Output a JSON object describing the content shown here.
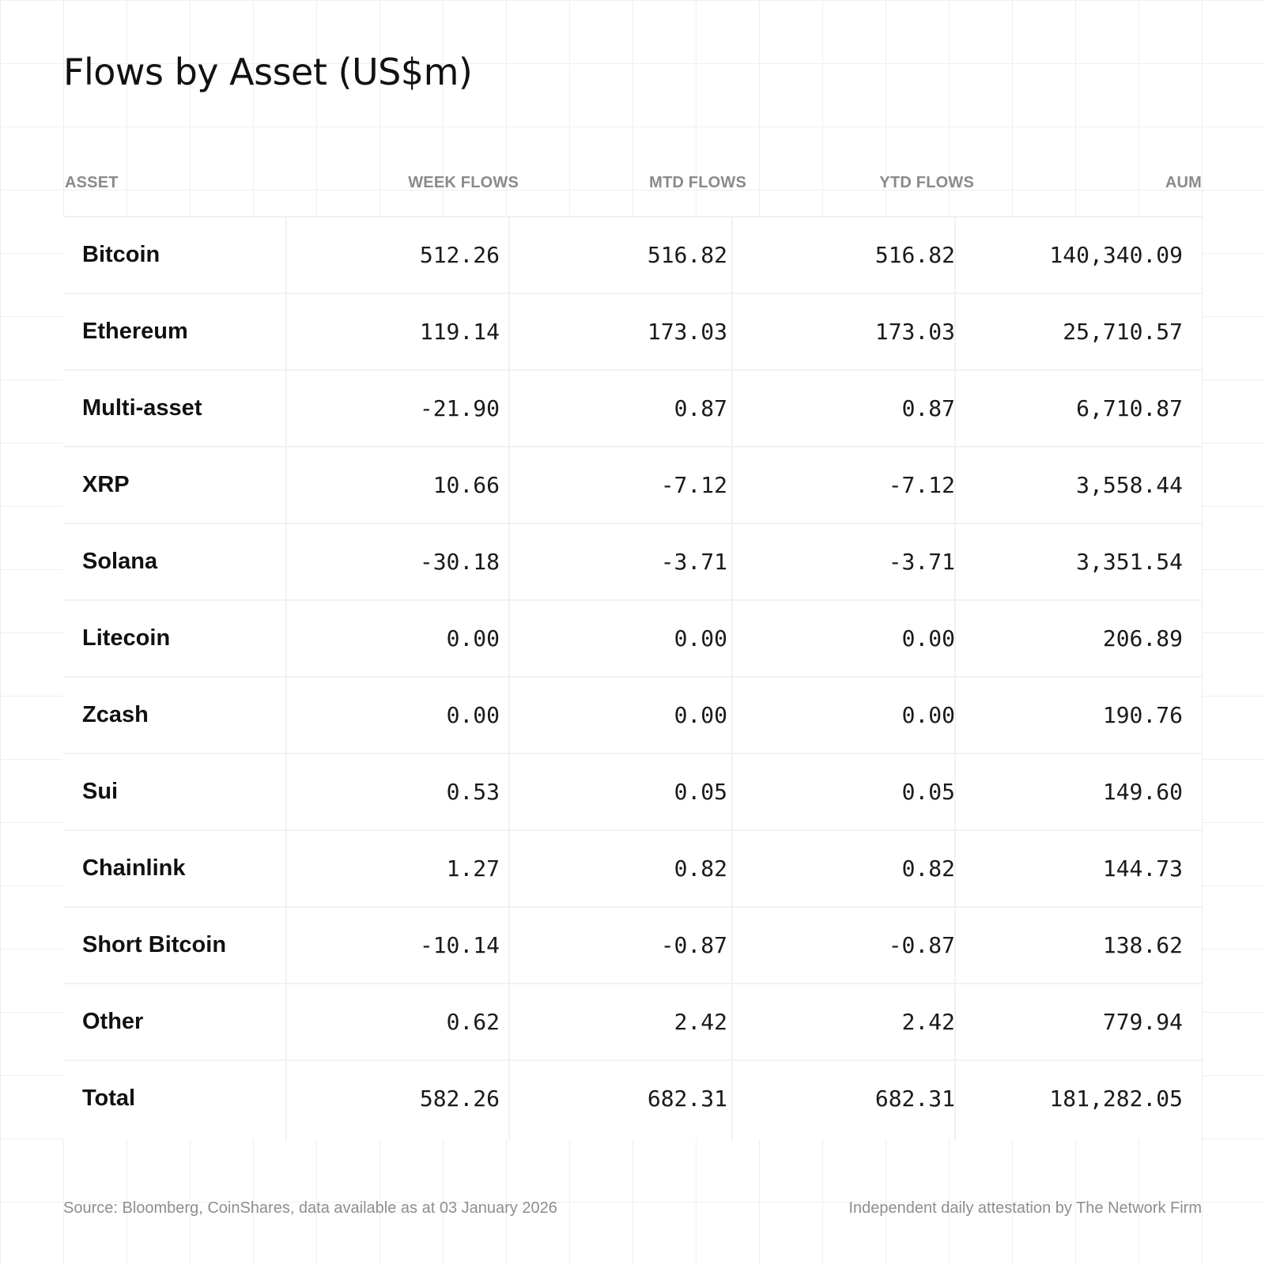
{
  "title": "Flows by Asset (US$m)",
  "chart_data": {
    "type": "table",
    "title": "Flows by Asset (US$m)",
    "columns": [
      "ASSET",
      "WEEK FLOWS",
      "MTD FLOWS",
      "YTD FLOWS",
      "AUM"
    ],
    "rows": [
      {
        "asset": "Bitcoin",
        "week": "512.26",
        "mtd": "516.82",
        "ytd": "516.82",
        "aum": "140,340.09"
      },
      {
        "asset": "Ethereum",
        "week": "119.14",
        "mtd": "173.03",
        "ytd": "173.03",
        "aum": "25,710.57"
      },
      {
        "asset": "Multi-asset",
        "week": "-21.90",
        "mtd": "0.87",
        "ytd": "0.87",
        "aum": "6,710.87"
      },
      {
        "asset": "XRP",
        "week": "10.66",
        "mtd": "-7.12",
        "ytd": "-7.12",
        "aum": "3,558.44"
      },
      {
        "asset": "Solana",
        "week": "-30.18",
        "mtd": "-3.71",
        "ytd": "-3.71",
        "aum": "3,351.54"
      },
      {
        "asset": "Litecoin",
        "week": "0.00",
        "mtd": "0.00",
        "ytd": "0.00",
        "aum": "206.89"
      },
      {
        "asset": "Zcash",
        "week": "0.00",
        "mtd": "0.00",
        "ytd": "0.00",
        "aum": "190.76"
      },
      {
        "asset": "Sui",
        "week": "0.53",
        "mtd": "0.05",
        "ytd": "0.05",
        "aum": "149.60"
      },
      {
        "asset": "Chainlink",
        "week": "1.27",
        "mtd": "0.82",
        "ytd": "0.82",
        "aum": "144.73"
      },
      {
        "asset": "Short Bitcoin",
        "week": "-10.14",
        "mtd": "-0.87",
        "ytd": "-0.87",
        "aum": "138.62"
      },
      {
        "asset": "Other",
        "week": "0.62",
        "mtd": "2.42",
        "ytd": "2.42",
        "aum": "779.94"
      },
      {
        "asset": "Total",
        "week": "582.26",
        "mtd": "682.31",
        "ytd": "682.31",
        "aum": "181,282.05"
      }
    ]
  },
  "footer": {
    "source": "Source: Bloomberg, CoinShares, data available as at 03 January 2026",
    "attestation": "Independent daily attestation by The Network Firm"
  }
}
